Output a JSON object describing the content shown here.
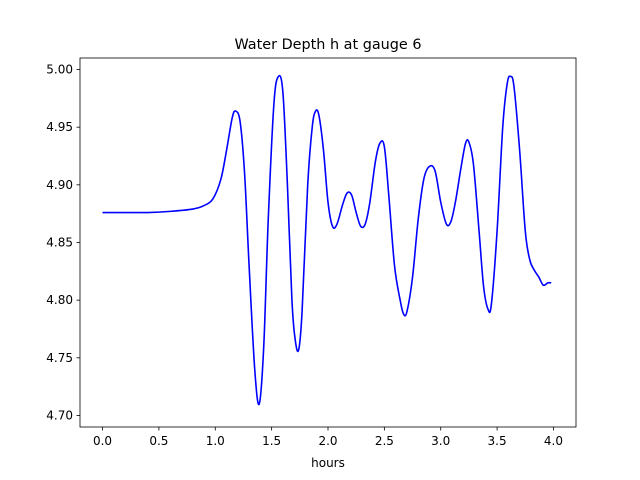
{
  "chart_data": {
    "type": "line",
    "title": "Water Depth h at gauge 6",
    "xlabel": "hours",
    "ylabel": "",
    "xlim": [
      -0.2,
      4.2
    ],
    "ylim": [
      4.69,
      5.01
    ],
    "grid": false,
    "legend": "none",
    "x_ticks": [
      0.0,
      0.5,
      1.0,
      1.5,
      2.0,
      2.5,
      3.0,
      3.5,
      4.0
    ],
    "x_tick_labels": [
      "0.0",
      "0.5",
      "1.0",
      "1.5",
      "2.0",
      "2.5",
      "3.0",
      "3.5",
      "4.0"
    ],
    "y_ticks": [
      4.7,
      4.75,
      4.8,
      4.85,
      4.9,
      4.95,
      5.0
    ],
    "y_tick_labels": [
      "4.70",
      "4.75",
      "4.80",
      "4.85",
      "4.90",
      "4.95",
      "5.00"
    ],
    "series": [
      {
        "name": "",
        "color": "#0000ff",
        "points": [
          [
            0.0,
            4.876
          ],
          [
            0.2,
            4.876
          ],
          [
            0.4,
            4.876
          ],
          [
            0.6,
            4.877
          ],
          [
            0.8,
            4.879
          ],
          [
            0.9,
            4.882
          ],
          [
            0.98,
            4.888
          ],
          [
            1.05,
            4.905
          ],
          [
            1.1,
            4.93
          ],
          [
            1.15,
            4.958
          ],
          [
            1.18,
            4.964
          ],
          [
            1.22,
            4.955
          ],
          [
            1.26,
            4.91
          ],
          [
            1.3,
            4.83
          ],
          [
            1.35,
            4.74
          ],
          [
            1.39,
            4.71
          ],
          [
            1.43,
            4.76
          ],
          [
            1.47,
            4.87
          ],
          [
            1.52,
            4.97
          ],
          [
            1.56,
            4.994
          ],
          [
            1.6,
            4.98
          ],
          [
            1.64,
            4.9
          ],
          [
            1.68,
            4.8
          ],
          [
            1.71,
            4.765
          ],
          [
            1.74,
            4.757
          ],
          [
            1.77,
            4.79
          ],
          [
            1.82,
            4.9
          ],
          [
            1.86,
            4.95
          ],
          [
            1.89,
            4.964
          ],
          [
            1.92,
            4.96
          ],
          [
            1.96,
            4.93
          ],
          [
            2.0,
            4.885
          ],
          [
            2.04,
            4.864
          ],
          [
            2.08,
            4.866
          ],
          [
            2.13,
            4.883
          ],
          [
            2.17,
            4.893
          ],
          [
            2.21,
            4.891
          ],
          [
            2.25,
            4.876
          ],
          [
            2.29,
            4.864
          ],
          [
            2.33,
            4.866
          ],
          [
            2.37,
            4.884
          ],
          [
            2.42,
            4.92
          ],
          [
            2.46,
            4.936
          ],
          [
            2.5,
            4.933
          ],
          [
            2.54,
            4.89
          ],
          [
            2.59,
            4.83
          ],
          [
            2.64,
            4.8
          ],
          [
            2.67,
            4.788
          ],
          [
            2.7,
            4.79
          ],
          [
            2.75,
            4.82
          ],
          [
            2.8,
            4.87
          ],
          [
            2.85,
            4.905
          ],
          [
            2.9,
            4.916
          ],
          [
            2.95,
            4.912
          ],
          [
            3.0,
            4.885
          ],
          [
            3.05,
            4.866
          ],
          [
            3.09,
            4.868
          ],
          [
            3.13,
            4.885
          ],
          [
            3.18,
            4.915
          ],
          [
            3.22,
            4.936
          ],
          [
            3.25,
            4.937
          ],
          [
            3.29,
            4.918
          ],
          [
            3.34,
            4.86
          ],
          [
            3.38,
            4.812
          ],
          [
            3.42,
            4.792
          ],
          [
            3.45,
            4.797
          ],
          [
            3.5,
            4.86
          ],
          [
            3.55,
            4.95
          ],
          [
            3.59,
            4.988
          ],
          [
            3.62,
            4.994
          ],
          [
            3.65,
            4.985
          ],
          [
            3.7,
            4.93
          ],
          [
            3.75,
            4.86
          ],
          [
            3.79,
            4.835
          ],
          [
            3.83,
            4.826
          ],
          [
            3.87,
            4.82
          ],
          [
            3.91,
            4.813
          ],
          [
            3.95,
            4.815
          ],
          [
            3.98,
            4.815
          ]
        ]
      }
    ]
  }
}
